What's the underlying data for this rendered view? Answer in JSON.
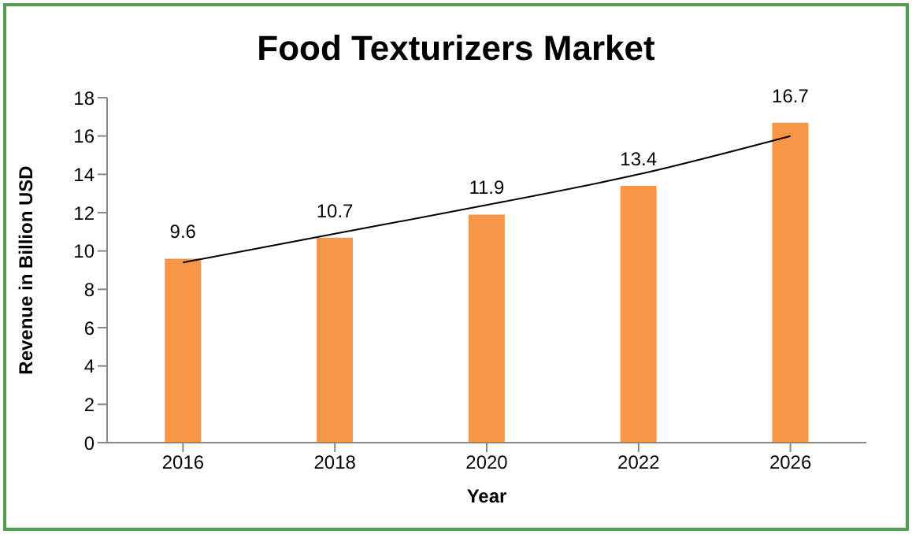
{
  "chart_data": {
    "type": "bar",
    "title": "Food Texturizers Market",
    "xlabel": "Year",
    "ylabel": "Revenue in Billion USD",
    "categories": [
      "2016",
      "2018",
      "2020",
      "2022",
      "2026"
    ],
    "series": [
      {
        "color": "#f79646",
        "values": [
          9.6,
          10.7,
          11.9,
          13.4,
          16.7
        ],
        "value_labels": [
          "9.6",
          "10.7",
          "11.9",
          "13.4",
          "16.7"
        ]
      },
      {
        "type": "line",
        "color": "#000000",
        "values": [
          9.4,
          10.9,
          12.4,
          14.0,
          16.0
        ],
        "marker": "none"
      }
    ],
    "ylim": [
      0,
      18
    ],
    "yticks": [
      0,
      2,
      4,
      6,
      8,
      10,
      12,
      14,
      16,
      18
    ],
    "legend": false
  }
}
